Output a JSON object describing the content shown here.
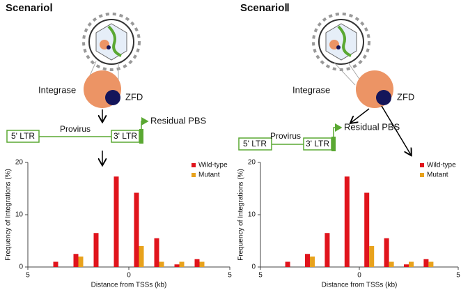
{
  "panels": [
    {
      "title": "ScenarioⅠ",
      "integrase": "Integrase",
      "zfd": "ZFD",
      "ltr5": "5' LTR",
      "provirus": "Provirus",
      "ltr3": "3' LTR",
      "pbs": "Residual PBS"
    },
    {
      "title": "ScenarioⅡ",
      "integrase": "Integrase",
      "zfd": "ZFD",
      "ltr5": "5' LTR",
      "provirus": "Provirus",
      "ltr3": "3' LTR",
      "pbs": "Residual PBS"
    }
  ],
  "chart_data": [
    {
      "type": "bar",
      "x_label": "Distance from TSSs (kb)",
      "y_label": "Frequency of Integrations (%)",
      "x": [
        -3.5,
        -2.5,
        -1.5,
        -0.5,
        0.5,
        1.5,
        2.5,
        3.5
      ],
      "series": [
        {
          "name": "Wild-type",
          "color": "#e0141c",
          "values": [
            1.0,
            2.5,
            6.5,
            17.3,
            14.2,
            5.5,
            0.5,
            1.5
          ]
        },
        {
          "name": "Mutant",
          "color": "#e8a21c",
          "values": [
            0,
            2.0,
            0,
            0,
            4.0,
            1.0,
            1.0,
            1.0
          ]
        }
      ],
      "xlim": [
        -5,
        5
      ],
      "xticks": [
        {
          "value": -5,
          "label": "5"
        },
        0,
        5
      ],
      "ylim": [
        0,
        20
      ],
      "yticks": [
        0,
        10,
        20
      ],
      "legend": "upper right"
    },
    {
      "type": "bar",
      "x_label": "Distance from TSSs (kb)",
      "y_label": "Frequency of Integrations (%)",
      "x": [
        -3.5,
        -2.5,
        -1.5,
        -0.5,
        0.5,
        1.5,
        2.5,
        3.5
      ],
      "series": [
        {
          "name": "Wild-type",
          "color": "#e0141c",
          "values": [
            1.0,
            2.5,
            6.5,
            17.3,
            14.2,
            5.5,
            0.5,
            1.5
          ]
        },
        {
          "name": "Mutant",
          "color": "#e8a21c",
          "values": [
            0,
            2.0,
            0,
            0,
            4.0,
            1.0,
            1.0,
            1.0
          ]
        }
      ],
      "xlim": [
        -5,
        5
      ],
      "xticks": [
        {
          "value": -5,
          "label": "5"
        },
        0,
        5
      ],
      "ylim": [
        0,
        20
      ],
      "yticks": [
        0,
        10,
        20
      ],
      "legend": "upper right"
    }
  ]
}
